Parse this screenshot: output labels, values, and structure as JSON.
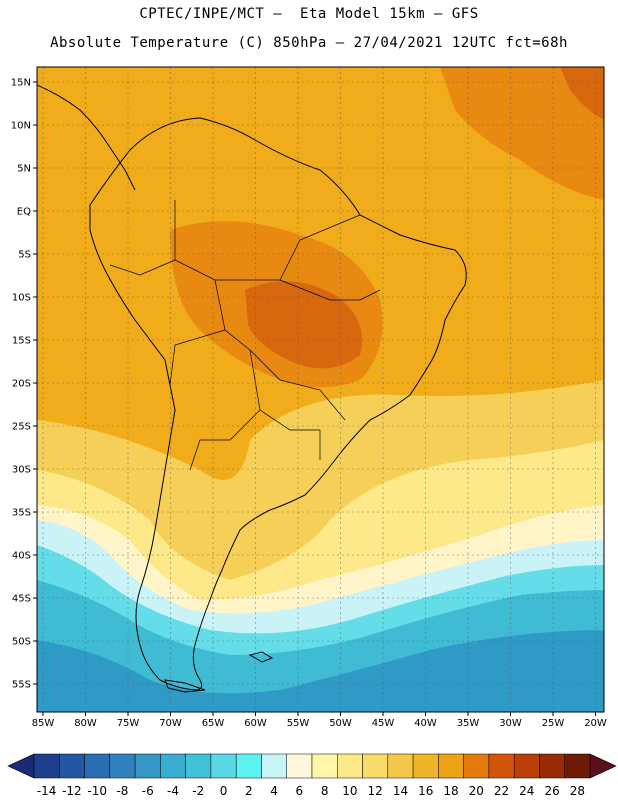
{
  "title_line1": "CPTEC/INPE/MCT –  Eta Model 15km – GFS",
  "title_line2": "Absolute Temperature (C) 850hPa – 27/04/2021 12UTC fct=68h",
  "lat_labels": [
    "15N",
    "10N",
    "5N",
    "EQ",
    "5S",
    "10S",
    "15S",
    "20S",
    "25S",
    "30S",
    "35S",
    "40S",
    "45S",
    "50S",
    "55S"
  ],
  "lon_labels": [
    "85W",
    "80W",
    "75W",
    "70W",
    "65W",
    "60W",
    "55W",
    "50W",
    "45W",
    "40W",
    "35W",
    "30W",
    "25W",
    "20W"
  ],
  "colorbar": {
    "ticks": [
      "-14",
      "-12",
      "-10",
      "-8",
      "-6",
      "-4",
      "-2",
      "0",
      "2",
      "4",
      "6",
      "8",
      "10",
      "12",
      "14",
      "16",
      "18",
      "20",
      "22",
      "24",
      "26",
      "28"
    ],
    "colors": [
      "#1f3f8c",
      "#2457a3",
      "#2a6db3",
      "#2f82be",
      "#3497c6",
      "#3aaccf",
      "#41c2d9",
      "#5bd8e6",
      "#5ff2f2",
      "#c8f6f8",
      "#fff7dc",
      "#fff6a8",
      "#fde98a",
      "#f9da6b",
      "#f4c84c",
      "#efb52a",
      "#eca316",
      "#e37a0b",
      "#d25509",
      "#b93e08",
      "#9a2a06",
      "#6e1a04"
    ],
    "left_arrow_color": "#1b2a72",
    "right_arrow_color": "#5a0e1a"
  },
  "colors": {
    "map_base": "#f0ac1a",
    "warm": "#e88a12",
    "hot": "#d8680e",
    "mild": "#f6cf58",
    "pale": "#fde98a",
    "cream": "#fff5c8",
    "ice": "#c9f3f6",
    "cyan": "#64dde8",
    "sky": "#3fbcd4",
    "blue": "#2f9ac6"
  }
}
